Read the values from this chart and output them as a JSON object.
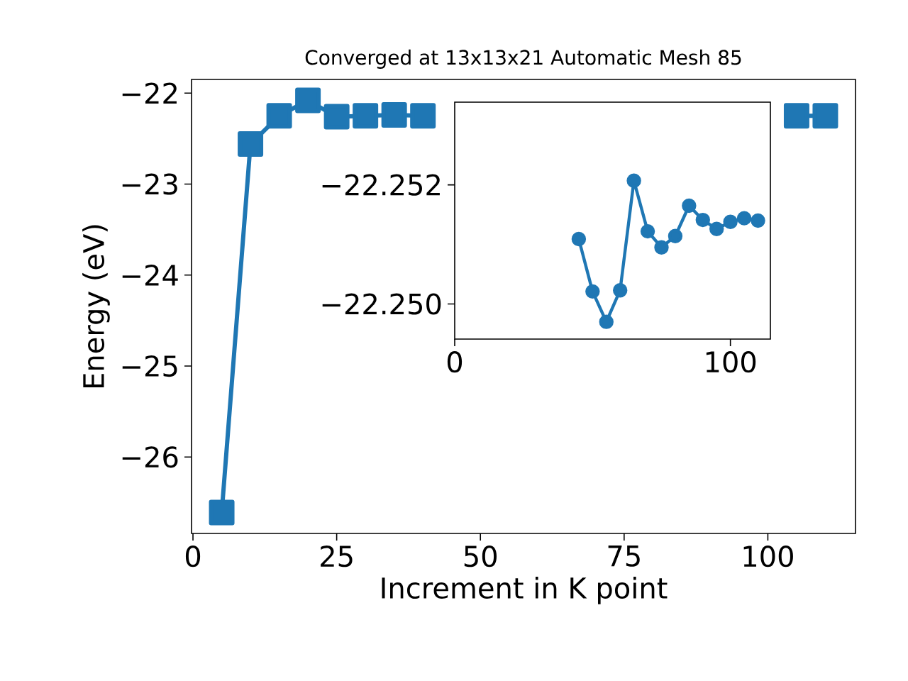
{
  "chart_data": [
    {
      "type": "line",
      "title": "Converged at 13x13x21 Automatic Mesh 85",
      "xlabel": "Increment in K point",
      "ylabel": "Energy (eV)",
      "x": [
        5,
        10,
        15,
        20,
        25,
        30,
        35,
        40,
        45,
        50,
        55,
        60,
        65,
        70,
        75,
        80,
        85,
        90,
        95,
        100,
        105,
        110
      ],
      "series": [
        {
          "color": "#1f77b4",
          "values": [
            -26.61,
            -22.56,
            -22.25,
            -22.08,
            -22.26,
            -22.25,
            -22.24,
            -22.25,
            null,
            null,
            null,
            null,
            null,
            null,
            null,
            null,
            null,
            null,
            null,
            null,
            -22.25,
            -22.25
          ]
        }
      ],
      "marker": "square",
      "xlim": [
        -0.25,
        115.25
      ],
      "ylim": [
        -26.84,
        -21.85
      ],
      "xticks": [
        0,
        25,
        50,
        75,
        100
      ],
      "yticks": [
        {
          "value": -26,
          "label": "−26"
        },
        {
          "value": -25,
          "label": "−25"
        },
        {
          "value": -24,
          "label": "−24"
        },
        {
          "value": -23,
          "label": "−23"
        },
        {
          "value": -22,
          "label": "−22"
        }
      ]
    },
    {
      "type": "line",
      "x": [
        45,
        50,
        55,
        60,
        65,
        70,
        75,
        80,
        85,
        90,
        95,
        100,
        105,
        110
      ],
      "series": [
        {
          "color": "#1f77b4",
          "values": [
            -22.25108,
            -22.2502,
            -22.24969,
            -22.25022,
            -22.25206,
            -22.25121,
            -22.25094,
            -22.25113,
            -22.25164,
            -22.2514,
            -22.25125,
            -22.25137,
            -22.25143,
            -22.25139
          ]
        }
      ],
      "marker": "circle",
      "xlim": [
        0,
        114.5
      ],
      "ylim": [
        -22.2494,
        -22.25338
      ],
      "xticks": [
        0,
        100
      ],
      "yticks": [
        {
          "value": -22.252,
          "label": "−22.252"
        },
        {
          "value": -22.25,
          "label": "−22.250"
        }
      ]
    }
  ]
}
